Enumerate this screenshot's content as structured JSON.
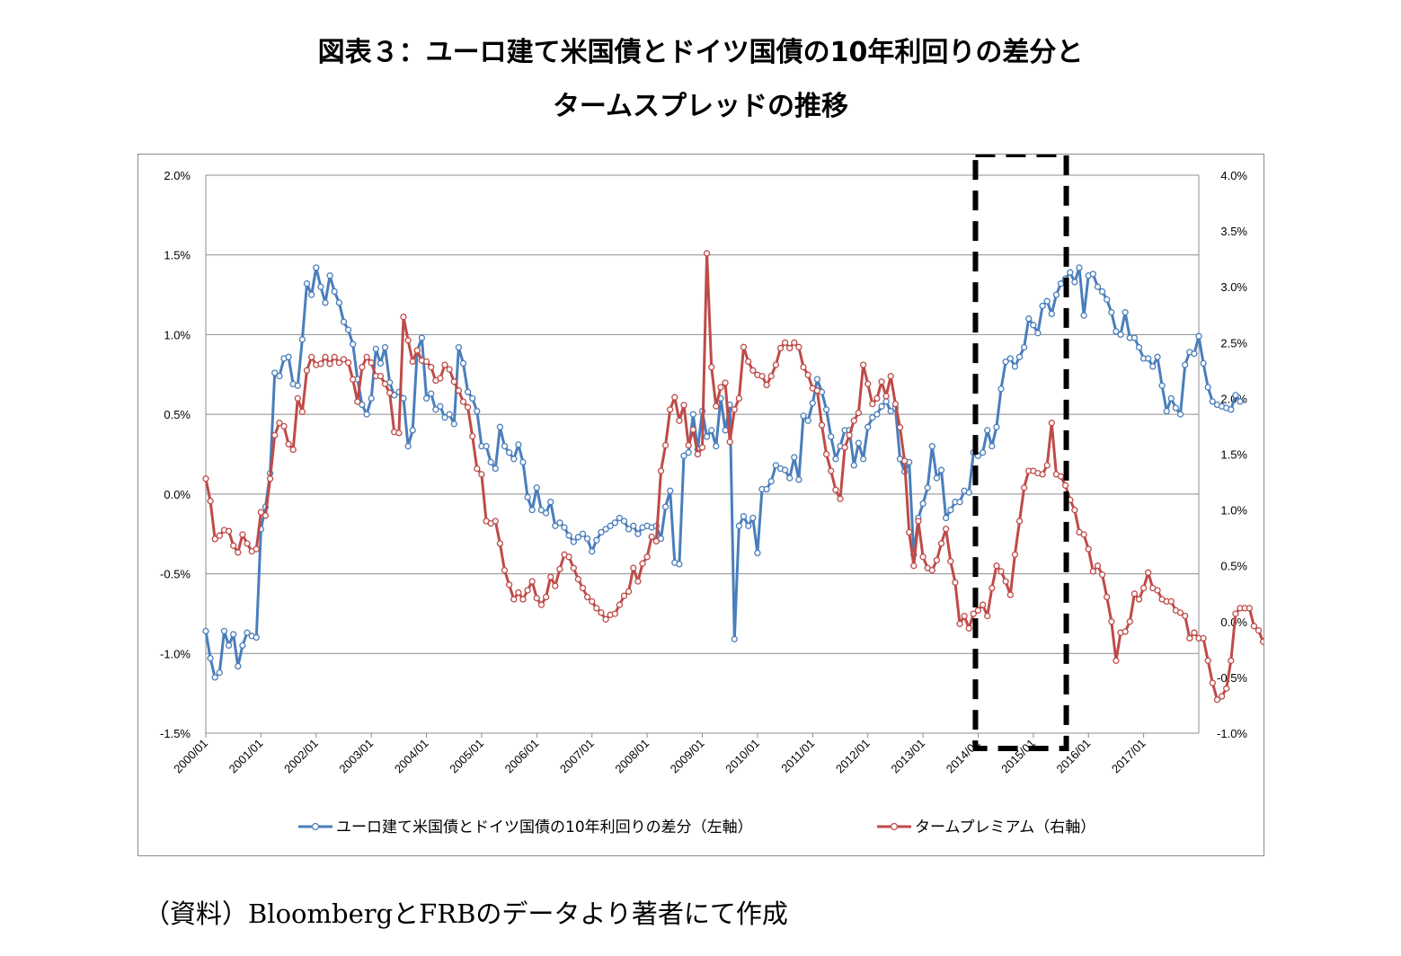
{
  "title_line1": "図表３：ユーロ建て米国債とドイツ国債の10年利回りの差分と",
  "title_line2": "タームスプレッドの推移",
  "source_note": "（資料）BloombergとFRBのデータより著者にて作成",
  "chart_data": {
    "type": "line",
    "x_tick_labels": [
      "2000/01",
      "2001/01",
      "2002/01",
      "2003/01",
      "2004/01",
      "2005/01",
      "2006/01",
      "2007/01",
      "2008/01",
      "2009/01",
      "2010/01",
      "2011/01",
      "2012/01",
      "2013/01",
      "2014/01",
      "2015/01",
      "2016/01",
      "2017/01"
    ],
    "x_range": [
      "2000/01",
      "2017/12"
    ],
    "y_left": {
      "ticks": [
        "2.0%",
        "1.5%",
        "1.0%",
        "0.5%",
        "0.0%",
        "-0.5%",
        "-1.0%",
        "-1.5%"
      ],
      "min": -1.5,
      "max": 2.0
    },
    "y_right": {
      "ticks": [
        "4.0%",
        "3.5%",
        "3.0%",
        "2.5%",
        "2.0%",
        "1.5%",
        "1.0%",
        "0.5%",
        "0.0%",
        "-0.5%",
        "-1.0%"
      ],
      "min": -1.0,
      "max": 4.0
    },
    "grid": true,
    "legend_position": "bottom",
    "highlight_box": {
      "from": "2014/01",
      "to": "2015/06",
      "style": "dashed"
    },
    "series": [
      {
        "name": "ユーロ建て米国債とドイツ国債の10年利回りの差分（左軸）",
        "axis": "left",
        "color": "#4a7ebb",
        "values": [
          -0.86,
          -1.03,
          -1.15,
          -1.12,
          -0.86,
          -0.95,
          -0.88,
          -1.08,
          -0.95,
          -0.87,
          -0.89,
          -0.9,
          -0.22,
          -0.08,
          0.13,
          0.76,
          0.74,
          0.85,
          0.86,
          0.69,
          0.68,
          0.97,
          1.32,
          1.25,
          1.42,
          1.3,
          1.2,
          1.37,
          1.27,
          1.2,
          1.08,
          1.03,
          0.94,
          0.72,
          0.56,
          0.5,
          0.6,
          0.91,
          0.82,
          0.92,
          0.7,
          0.62,
          0.64,
          0.6,
          0.3,
          0.4,
          0.9,
          0.98,
          0.6,
          0.63,
          0.53,
          0.55,
          0.48,
          0.5,
          0.44,
          0.92,
          0.82,
          0.64,
          0.6,
          0.52,
          0.3,
          0.3,
          0.2,
          0.16,
          0.42,
          0.3,
          0.26,
          0.22,
          0.31,
          0.2,
          -0.02,
          -0.1,
          0.04,
          -0.1,
          -0.12,
          -0.05,
          -0.2,
          -0.18,
          -0.21,
          -0.26,
          -0.3,
          -0.27,
          -0.25,
          -0.28,
          -0.36,
          -0.29,
          -0.24,
          -0.22,
          -0.2,
          -0.18,
          -0.15,
          -0.17,
          -0.22,
          -0.2,
          -0.25,
          -0.21,
          -0.2,
          -0.21,
          -0.2,
          -0.28,
          -0.08,
          0.02,
          -0.43,
          -0.44,
          0.24,
          0.26,
          0.5,
          0.28,
          0.52,
          0.36,
          0.4,
          0.3,
          0.6,
          0.4,
          0.56,
          -0.91,
          -0.2,
          -0.14,
          -0.2,
          -0.15,
          -0.37,
          0.03,
          0.03,
          0.08,
          0.18,
          0.16,
          0.15,
          0.1,
          0.23,
          0.09,
          0.49,
          0.46,
          0.57,
          0.72,
          0.64,
          0.53,
          0.36,
          0.22,
          0.3,
          0.4,
          0.4,
          0.18,
          0.32,
          0.22,
          0.42,
          0.48,
          0.5,
          0.55,
          0.58,
          0.52,
          0.54,
          0.22,
          0.14,
          0.2,
          -0.38,
          -0.15,
          -0.06,
          0.04,
          0.3,
          0.1,
          0.15,
          -0.15,
          -0.1,
          -0.05,
          -0.05,
          0.02,
          0.01,
          0.26,
          0.24,
          0.26,
          0.4,
          0.3,
          0.42,
          0.66,
          0.83,
          0.85,
          0.8,
          0.86,
          0.92,
          1.1,
          1.06,
          1.01,
          1.18,
          1.21,
          1.13,
          1.25,
          1.32,
          1.35,
          1.39,
          1.33,
          1.42,
          1.12,
          1.37,
          1.38,
          1.3,
          1.27,
          1.22,
          1.14,
          1.02,
          1.0,
          1.14,
          0.98,
          0.98,
          0.92,
          0.85,
          0.85,
          0.8,
          0.86,
          0.68,
          0.52,
          0.6,
          0.54,
          0.5,
          0.81,
          0.89,
          0.88,
          0.99,
          0.82,
          0.67,
          0.58,
          0.56,
          0.55,
          0.54,
          0.53,
          0.62,
          0.58
        ]
      },
      {
        "name": "タームプレミアム（右軸）",
        "axis": "right",
        "color": "#be4b48",
        "values": [
          1.28,
          1.08,
          0.74,
          0.77,
          0.82,
          0.81,
          0.68,
          0.62,
          0.78,
          0.7,
          0.63,
          0.65,
          0.98,
          0.95,
          1.28,
          1.67,
          1.78,
          1.75,
          1.59,
          1.54,
          2.0,
          1.88,
          2.25,
          2.37,
          2.3,
          2.31,
          2.37,
          2.31,
          2.37,
          2.32,
          2.35,
          2.32,
          2.17,
          1.97,
          2.28,
          2.37,
          2.32,
          2.2,
          2.2,
          2.13,
          2.05,
          1.7,
          1.69,
          2.73,
          2.52,
          2.33,
          2.43,
          2.34,
          2.33,
          2.28,
          2.16,
          2.18,
          2.3,
          2.26,
          2.15,
          2.07,
          1.97,
          1.92,
          1.66,
          1.37,
          1.32,
          0.9,
          0.88,
          0.9,
          0.7,
          0.46,
          0.33,
          0.2,
          0.26,
          0.2,
          0.28,
          0.36,
          0.21,
          0.15,
          0.22,
          0.4,
          0.32,
          0.47,
          0.6,
          0.58,
          0.48,
          0.38,
          0.3,
          0.22,
          0.18,
          0.12,
          0.08,
          0.02,
          0.06,
          0.07,
          0.15,
          0.23,
          0.27,
          0.48,
          0.36,
          0.52,
          0.58,
          0.76,
          0.72,
          1.35,
          1.58,
          1.9,
          2.01,
          1.8,
          1.94,
          1.58,
          1.72,
          1.5,
          1.56,
          3.3,
          2.28,
          1.93,
          2.1,
          2.14,
          1.61,
          1.9,
          2.0,
          2.46,
          2.33,
          2.25,
          2.21,
          2.2,
          2.12,
          2.2,
          2.3,
          2.45,
          2.5,
          2.45,
          2.5,
          2.46,
          2.28,
          2.21,
          2.09,
          2.07,
          1.76,
          1.5,
          1.35,
          1.18,
          1.1,
          1.56,
          1.67,
          1.8,
          1.87,
          2.3,
          2.13,
          1.95,
          2.0,
          2.15,
          2.02,
          2.2,
          1.95,
          1.74,
          1.44,
          0.8,
          0.5,
          0.9,
          0.58,
          0.48,
          0.46,
          0.55,
          0.7,
          0.83,
          0.54,
          0.35,
          -0.02,
          0.05,
          -0.06,
          0.07,
          0.1,
          0.15,
          0.05,
          0.3,
          0.5,
          0.45,
          0.36,
          0.24,
          0.6,
          0.9,
          1.2,
          1.35,
          1.35,
          1.33,
          1.32,
          1.4,
          1.78,
          1.32,
          1.3,
          1.22,
          1.09,
          1.0,
          0.8,
          0.78,
          0.65,
          0.45,
          0.5,
          0.42,
          0.22,
          0.0,
          -0.35,
          -0.1,
          -0.09,
          0.0,
          0.25,
          0.2,
          0.3,
          0.44,
          0.3,
          0.28,
          0.2,
          0.18,
          0.18,
          0.1,
          0.08,
          0.05,
          -0.15,
          -0.1,
          -0.15,
          -0.15,
          -0.35,
          -0.55,
          -0.7,
          -0.67,
          -0.6,
          -0.35,
          0.07,
          0.12,
          0.12,
          0.12,
          -0.04,
          -0.08,
          -0.18,
          -0.27,
          -0.24,
          -0.3,
          -0.3,
          -0.41,
          -0.36,
          -0.38,
          -0.45
        ]
      }
    ]
  }
}
